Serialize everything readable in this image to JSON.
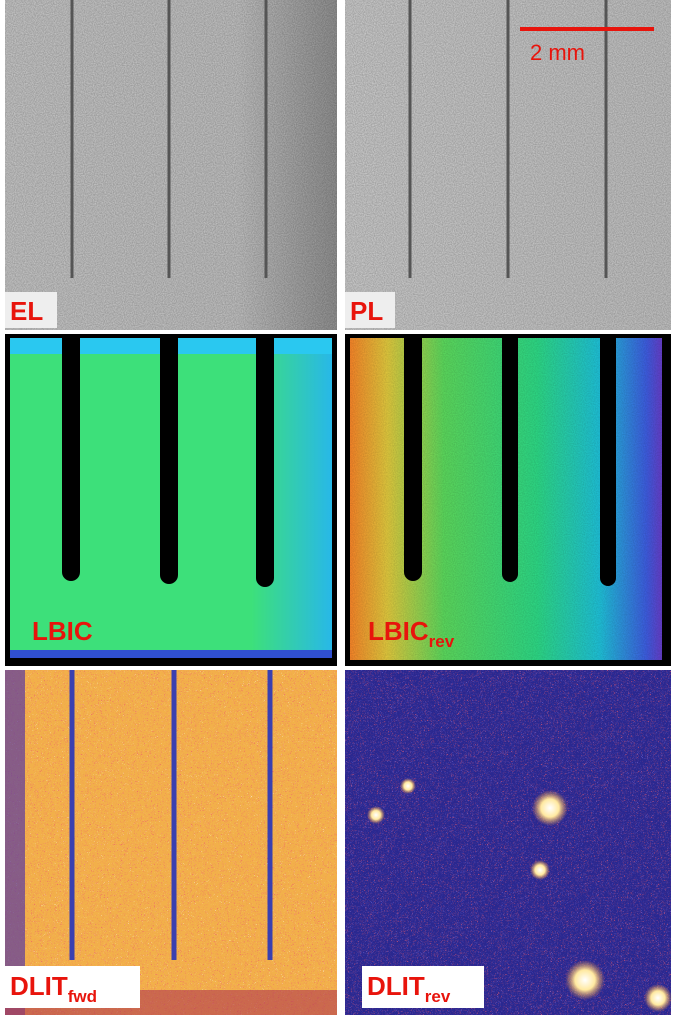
{
  "panels": [
    {
      "label": "EL"
    },
    {
      "label": "PL"
    },
    {
      "label": "LBIC"
    },
    {
      "label": "LBIC",
      "subscript": "rev"
    },
    {
      "label": "DLIT",
      "subscript": "fwd"
    },
    {
      "label": "DLIT",
      "subscript": "rev"
    }
  ],
  "scale_bar": {
    "label": "2 mm"
  }
}
